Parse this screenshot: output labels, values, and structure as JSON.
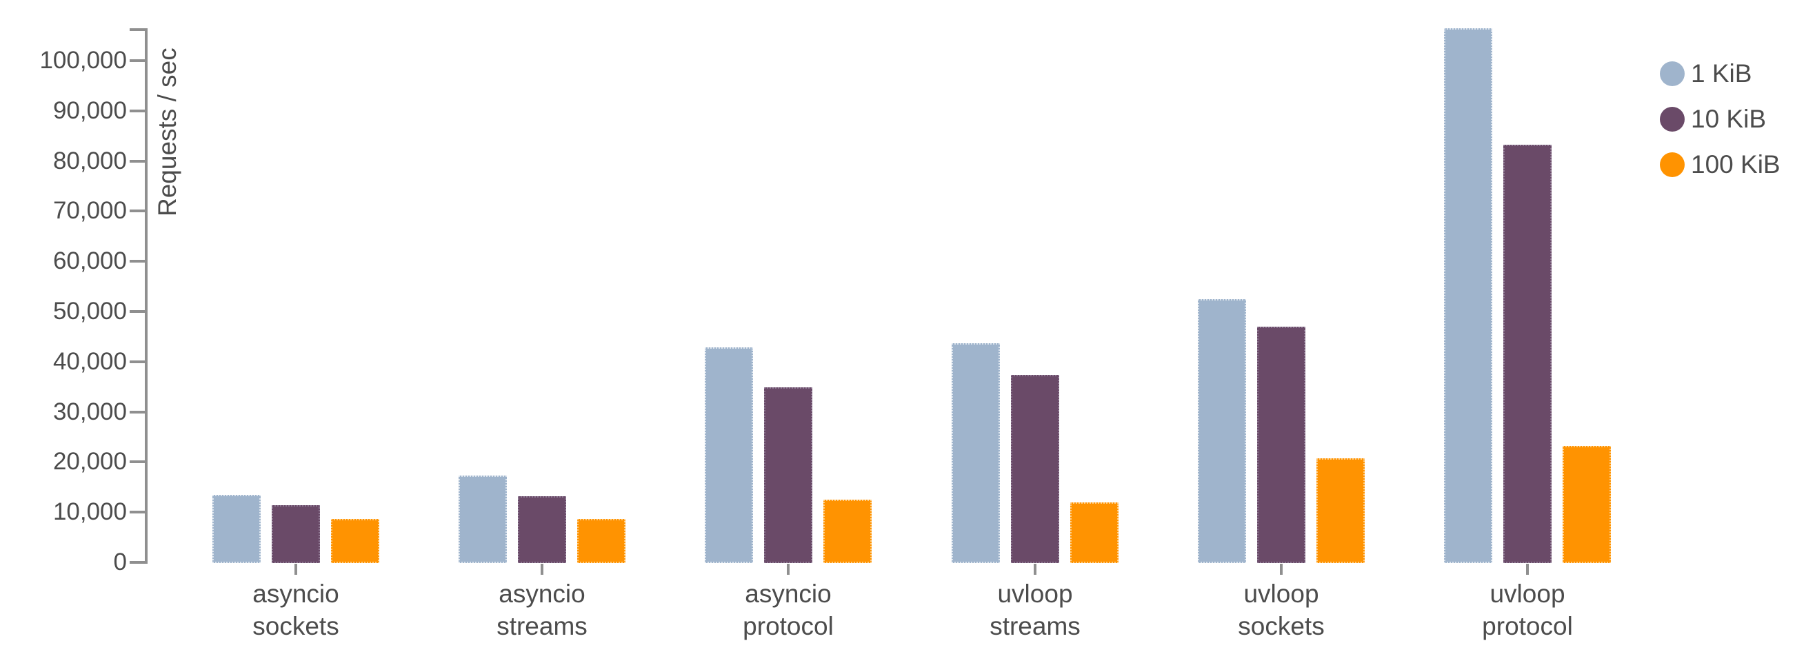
{
  "chart_data": {
    "type": "bar",
    "title": "",
    "ylabel": "Requests / sec",
    "xlabel": "",
    "grid": false,
    "legend_position": "top-right",
    "ylim": [
      0,
      106400
    ],
    "y_ticks": [
      0,
      10000,
      20000,
      30000,
      40000,
      50000,
      60000,
      70000,
      80000,
      90000,
      100000
    ],
    "y_tick_labels": [
      "0",
      "10,000",
      "20,000",
      "30,000",
      "40,000",
      "50,000",
      "60,000",
      "70,000",
      "80,000",
      "90,000",
      "100,000"
    ],
    "categories": [
      {
        "line1": "asyncio",
        "line2": "sockets"
      },
      {
        "line1": "asyncio",
        "line2": "streams"
      },
      {
        "line1": "asyncio",
        "line2": "protocol"
      },
      {
        "line1": "uvloop",
        "line2": "streams"
      },
      {
        "line1": "uvloop",
        "line2": "sockets"
      },
      {
        "line1": "uvloop",
        "line2": "protocol"
      }
    ],
    "series": [
      {
        "name": "1 KiB",
        "color": "#9fb4cc",
        "values": [
          13400,
          17300,
          42900,
          43700,
          52500,
          106400
        ]
      },
      {
        "name": "10 KiB",
        "color": "#6a4a68",
        "values": [
          11400,
          13200,
          34900,
          37400,
          47000,
          83300
        ]
      },
      {
        "name": "100 KiB",
        "color": "#ff9301",
        "values": [
          8600,
          8600,
          12500,
          11900,
          20700,
          23200
        ]
      }
    ]
  },
  "colors": {
    "background": "#ffffff",
    "axis": "#8f8f8f",
    "text": "#4c4c4c",
    "series_blue": "#9fb4cc",
    "series_purple": "#6a4a68",
    "series_orange": "#ff9301"
  }
}
